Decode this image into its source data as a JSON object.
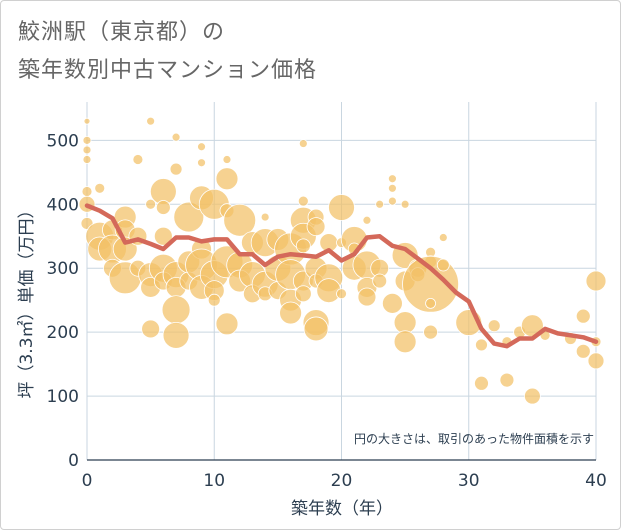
{
  "title_line1": "鮫洲駅（東京都）の",
  "title_line2": "築年数別中古マンション価格",
  "chart_data": {
    "type": "scatter",
    "xlabel": "築年数（年）",
    "ylabel": "坪（3.3㎡）単価（万円）",
    "xlim": [
      0,
      40
    ],
    "ylim": [
      0,
      560
    ],
    "xticks": [
      0,
      10,
      20,
      30,
      40
    ],
    "yticks": [
      0,
      100,
      200,
      300,
      400,
      500
    ],
    "grid": true,
    "annotation": "円の大きさは、取引のあった物件面積を示す",
    "colors": {
      "bubble": "#f3c067",
      "line": "#d4695a",
      "grid": "#c9d6e0"
    },
    "series": [
      {
        "type": "line",
        "x": [
          0,
          1,
          2,
          3,
          4,
          5,
          6,
          7,
          8,
          9,
          10,
          11,
          12,
          13,
          14,
          15,
          16,
          17,
          18,
          19,
          20,
          21,
          22,
          23,
          24,
          25,
          26,
          27,
          28,
          29,
          30,
          31,
          32,
          33,
          34,
          35,
          36,
          37,
          38,
          39,
          40
        ],
        "values": [
          398,
          390,
          378,
          340,
          345,
          338,
          330,
          348,
          348,
          342,
          345,
          345,
          322,
          322,
          305,
          318,
          322,
          320,
          318,
          328,
          312,
          322,
          348,
          350,
          335,
          330,
          315,
          300,
          282,
          262,
          248,
          205,
          182,
          178,
          190,
          190,
          205,
          198,
          195,
          192,
          185
        ]
      },
      {
        "type": "scatter",
        "points": [
          [
            0,
            530,
            3
          ],
          [
            0,
            500,
            4
          ],
          [
            0,
            485,
            4
          ],
          [
            0,
            470,
            4
          ],
          [
            0,
            420,
            5
          ],
          [
            0,
            400,
            8
          ],
          [
            0,
            370,
            6
          ],
          [
            1,
            425,
            5
          ],
          [
            1,
            350,
            14
          ],
          [
            1,
            330,
            12
          ],
          [
            2,
            360,
            10
          ],
          [
            2,
            330,
            14
          ],
          [
            2,
            300,
            9
          ],
          [
            3,
            380,
            11
          ],
          [
            3,
            360,
            10
          ],
          [
            3,
            330,
            12
          ],
          [
            3,
            285,
            16
          ],
          [
            4,
            470,
            5
          ],
          [
            4,
            350,
            9
          ],
          [
            4,
            300,
            8
          ],
          [
            5,
            530,
            4
          ],
          [
            5,
            400,
            5
          ],
          [
            5,
            290,
            12
          ],
          [
            5,
            270,
            10
          ],
          [
            5,
            205,
            9
          ],
          [
            6,
            420,
            13
          ],
          [
            6,
            395,
            7
          ],
          [
            6,
            350,
            9
          ],
          [
            6,
            300,
            14
          ],
          [
            6,
            280,
            9
          ],
          [
            7,
            505,
            4
          ],
          [
            7,
            455,
            6
          ],
          [
            7,
            290,
            13
          ],
          [
            7,
            270,
            10
          ],
          [
            7,
            235,
            14
          ],
          [
            7,
            195,
            13
          ],
          [
            8,
            380,
            15
          ],
          [
            8,
            310,
            11
          ],
          [
            8,
            280,
            9
          ],
          [
            9,
            490,
            4
          ],
          [
            9,
            465,
            4
          ],
          [
            9,
            410,
            12
          ],
          [
            9,
            330,
            10
          ],
          [
            9,
            305,
            16
          ],
          [
            9,
            270,
            12
          ],
          [
            10,
            400,
            15
          ],
          [
            10,
            290,
            14
          ],
          [
            10,
            265,
            10
          ],
          [
            10,
            250,
            6
          ],
          [
            11,
            470,
            4
          ],
          [
            11,
            440,
            11
          ],
          [
            11,
            390,
            7
          ],
          [
            11,
            310,
            16
          ],
          [
            11,
            213,
            11
          ],
          [
            12,
            375,
            16
          ],
          [
            12,
            305,
            13
          ],
          [
            12,
            280,
            11
          ],
          [
            13,
            340,
            11
          ],
          [
            13,
            290,
            13
          ],
          [
            13,
            260,
            9
          ],
          [
            14,
            380,
            4
          ],
          [
            14,
            340,
            14
          ],
          [
            14,
            275,
            13
          ],
          [
            14,
            260,
            7
          ],
          [
            15,
            345,
            11
          ],
          [
            15,
            300,
            13
          ],
          [
            15,
            265,
            9
          ],
          [
            16,
            330,
            16
          ],
          [
            16,
            290,
            15
          ],
          [
            16,
            250,
            11
          ],
          [
            16,
            230,
            11
          ],
          [
            17,
            495,
            4
          ],
          [
            17,
            405,
            5
          ],
          [
            17,
            375,
            13
          ],
          [
            17,
            350,
            13
          ],
          [
            17,
            335,
            7
          ],
          [
            17,
            280,
            10
          ],
          [
            17,
            260,
            8
          ],
          [
            18,
            380,
            8
          ],
          [
            18,
            365,
            9
          ],
          [
            18,
            300,
            11
          ],
          [
            18,
            280,
            7
          ],
          [
            18,
            215,
            13
          ],
          [
            18,
            205,
            12
          ],
          [
            19,
            340,
            9
          ],
          [
            19,
            285,
            14
          ],
          [
            19,
            265,
            12
          ],
          [
            20,
            395,
            13
          ],
          [
            20,
            340,
            5
          ],
          [
            20,
            260,
            5
          ],
          [
            21,
            345,
            13
          ],
          [
            21,
            330,
            6
          ],
          [
            21,
            300,
            12
          ],
          [
            22,
            375,
            4
          ],
          [
            22,
            305,
            14
          ],
          [
            22,
            270,
            10
          ],
          [
            22,
            255,
            9
          ],
          [
            23,
            400,
            4
          ],
          [
            23,
            300,
            9
          ],
          [
            23,
            280,
            7
          ],
          [
            24,
            440,
            4
          ],
          [
            24,
            425,
            4
          ],
          [
            24,
            405,
            4
          ],
          [
            24,
            245,
            10
          ],
          [
            25,
            400,
            4
          ],
          [
            25,
            320,
            13
          ],
          [
            25,
            280,
            10
          ],
          [
            25,
            215,
            11
          ],
          [
            25,
            185,
            11
          ],
          [
            26,
            300,
            9
          ],
          [
            26,
            290,
            7
          ],
          [
            27,
            325,
            5
          ],
          [
            27,
            310,
            6
          ],
          [
            27,
            275,
            28
          ],
          [
            27,
            245,
            5
          ],
          [
            27,
            200,
            7
          ],
          [
            28,
            348,
            4
          ],
          [
            28,
            305,
            6
          ],
          [
            30,
            215,
            13
          ],
          [
            31,
            180,
            6
          ],
          [
            31,
            120,
            7
          ],
          [
            32,
            210,
            6
          ],
          [
            33,
            185,
            5
          ],
          [
            33,
            125,
            7
          ],
          [
            34,
            200,
            6
          ],
          [
            35,
            210,
            11
          ],
          [
            35,
            100,
            8
          ],
          [
            36,
            195,
            5
          ],
          [
            38,
            190,
            6
          ],
          [
            39,
            225,
            7
          ],
          [
            39,
            170,
            7
          ],
          [
            40,
            280,
            10
          ],
          [
            40,
            185,
            5
          ],
          [
            40,
            155,
            8
          ]
        ]
      }
    ]
  }
}
